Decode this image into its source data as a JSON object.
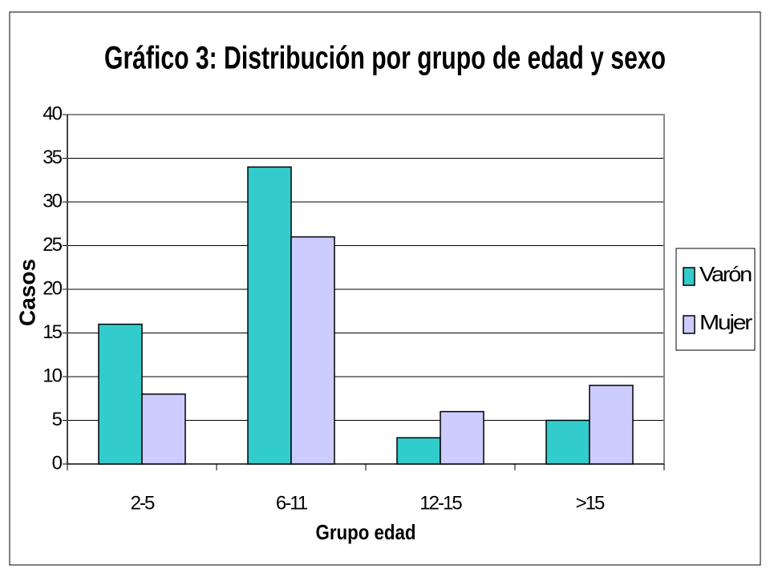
{
  "chart_data": {
    "type": "bar",
    "title": "Gráfico 3: Distribución por grupo de edad y sexo",
    "x_label": "Grupo edad",
    "y_label": "Casos",
    "categories": [
      "2-5",
      "6-11",
      "12-15",
      ">15"
    ],
    "series": [
      {
        "name": "Varón",
        "color": "#33cccc",
        "values": [
          16,
          34,
          3,
          5
        ]
      },
      {
        "name": "Mujer",
        "color": "#ccccff",
        "values": [
          8,
          26,
          6,
          9
        ]
      }
    ],
    "ylim": [
      0,
      40
    ],
    "yticks": [
      0,
      5,
      10,
      15,
      20,
      25,
      30,
      35,
      40
    ],
    "grid": true,
    "legend": "right"
  }
}
